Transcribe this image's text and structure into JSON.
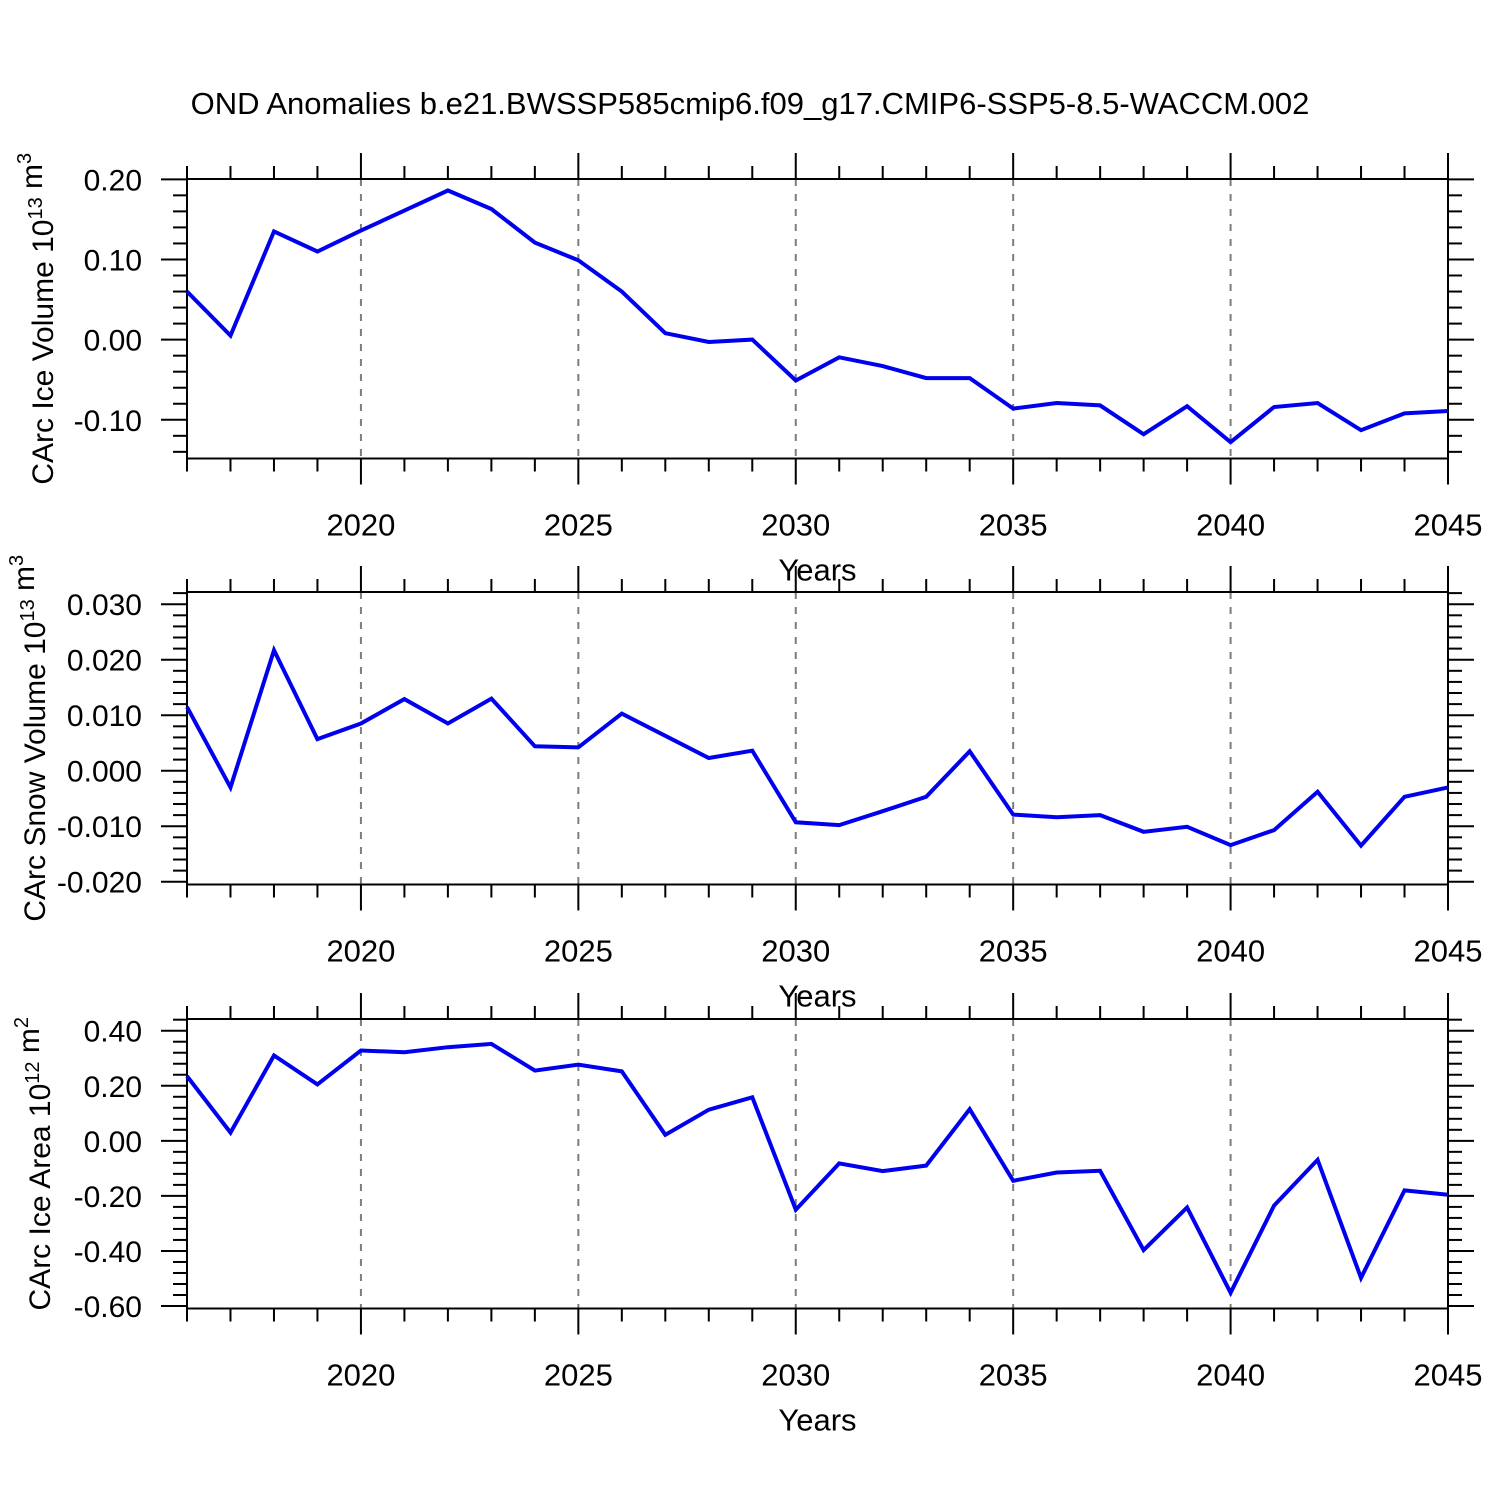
{
  "title": "OND Anomalies b.e21.BWSSP585cmip6.f09_g17.CMIP6-SSP5-8.5-WACCM.002",
  "colors": {
    "line": "#0000EE",
    "axis": "#000000",
    "grid": "#7D7D7D",
    "text": "#000000",
    "background": "#FFFFFF"
  },
  "x_axis": {
    "label": "Years",
    "years": [
      2016,
      2017,
      2018,
      2019,
      2020,
      2021,
      2022,
      2023,
      2024,
      2025,
      2026,
      2027,
      2028,
      2029,
      2030,
      2031,
      2032,
      2033,
      2034,
      2035,
      2036,
      2037,
      2038,
      2039,
      2040,
      2041,
      2042,
      2043,
      2044,
      2045
    ],
    "major_tick_years": [
      2020,
      2025,
      2030,
      2035,
      2040,
      2045
    ],
    "major_tick_labels": [
      "2020",
      "2025",
      "2030",
      "2035",
      "2040",
      "2045"
    ],
    "gridline_years": [
      2020,
      2025,
      2030,
      2035,
      2040
    ],
    "xlim": [
      2016,
      2045
    ]
  },
  "chart_data": [
    {
      "type": "line",
      "title": "",
      "ylabel": "CArc Ice Volume 10^13 m^3",
      "ylabel_parts": [
        {
          "text": "CArc Ice Volume 10",
          "sup": false
        },
        {
          "text": "13",
          "sup": true
        },
        {
          "text": " m",
          "sup": false
        },
        {
          "text": "3",
          "sup": true
        }
      ],
      "xlabel": "Years",
      "x": [
        2016,
        2017,
        2018,
        2019,
        2020,
        2021,
        2022,
        2023,
        2024,
        2025,
        2026,
        2027,
        2028,
        2029,
        2030,
        2031,
        2032,
        2033,
        2034,
        2035,
        2036,
        2037,
        2038,
        2039,
        2040,
        2041,
        2042,
        2043,
        2044,
        2045
      ],
      "series": [
        {
          "name": "CArc Ice Volume anomaly",
          "values": [
            0.06,
            0.005,
            0.135,
            0.11,
            0.136,
            0.161,
            0.186,
            0.163,
            0.121,
            0.099,
            0.06,
            0.008,
            -0.003,
            0.0,
            -0.051,
            -0.022,
            -0.033,
            -0.048,
            -0.048,
            -0.086,
            -0.079,
            -0.082,
            -0.118,
            -0.083,
            -0.128,
            -0.084,
            -0.079,
            -0.113,
            -0.092,
            -0.089
          ]
        }
      ],
      "ylim": [
        -0.1483,
        0.2004
      ],
      "ytick_values": [
        0.2,
        0.1,
        0.0,
        -0.1
      ],
      "ytick_labels": [
        "0.20",
        "0.10",
        "0.00",
        "-0.10"
      ],
      "minor_step": 0.02,
      "grid": "vertical-dashed",
      "legend": "none"
    },
    {
      "type": "line",
      "title": "",
      "ylabel": "CArc Snow Volume 10^13 m^3",
      "ylabel_parts": [
        {
          "text": "CArc Snow Volume 10",
          "sup": false
        },
        {
          "text": "13",
          "sup": true
        },
        {
          "text": " m",
          "sup": false
        },
        {
          "text": "3",
          "sup": true
        }
      ],
      "xlabel": "Years",
      "x": [
        2016,
        2017,
        2018,
        2019,
        2020,
        2021,
        2022,
        2023,
        2024,
        2025,
        2026,
        2027,
        2028,
        2029,
        2030,
        2031,
        2032,
        2033,
        2034,
        2035,
        2036,
        2037,
        2038,
        2039,
        2040,
        2041,
        2042,
        2043,
        2044,
        2045
      ],
      "series": [
        {
          "name": "CArc Snow Volume anomaly",
          "values": [
            0.0115,
            -0.003,
            0.0217,
            0.0057,
            0.0085,
            0.0129,
            0.0085,
            0.013,
            0.0044,
            0.0042,
            0.0103,
            0.0063,
            0.0023,
            0.0036,
            -0.0093,
            -0.0098,
            -0.0073,
            -0.0047,
            0.0035,
            -0.0079,
            -0.0084,
            -0.008,
            -0.011,
            -0.0101,
            -0.0134,
            -0.0107,
            -0.0038,
            -0.0135,
            -0.0047,
            -0.003
          ]
        }
      ],
      "ylim": [
        -0.0205,
        0.0322
      ],
      "ytick_values": [
        0.03,
        0.02,
        0.01,
        0.0,
        -0.01,
        -0.02
      ],
      "ytick_labels": [
        "0.030",
        "0.020",
        "0.010",
        "0.000",
        "-0.010",
        "-0.020"
      ],
      "minor_step": 0.002,
      "grid": "vertical-dashed",
      "legend": "none"
    },
    {
      "type": "line",
      "title": "",
      "ylabel": "CArc Ice Area 10^12 m^2",
      "ylabel_parts": [
        {
          "text": "CArc Ice Area 10",
          "sup": false
        },
        {
          "text": "12",
          "sup": true
        },
        {
          "text": " m",
          "sup": false
        },
        {
          "text": "2",
          "sup": true
        }
      ],
      "xlabel": "Years",
      "x": [
        2016,
        2017,
        2018,
        2019,
        2020,
        2021,
        2022,
        2023,
        2024,
        2025,
        2026,
        2027,
        2028,
        2029,
        2030,
        2031,
        2032,
        2033,
        2034,
        2035,
        2036,
        2037,
        2038,
        2039,
        2040,
        2041,
        2042,
        2043,
        2044,
        2045
      ],
      "series": [
        {
          "name": "CArc Ice Area anomaly",
          "values": [
            0.235,
            0.03,
            0.31,
            0.205,
            0.328,
            0.322,
            0.34,
            0.352,
            0.255,
            0.277,
            0.252,
            0.022,
            0.113,
            0.158,
            -0.25,
            -0.082,
            -0.11,
            -0.09,
            0.115,
            -0.145,
            -0.115,
            -0.109,
            -0.397,
            -0.242,
            -0.552,
            -0.235,
            -0.069,
            -0.498,
            -0.18,
            -0.196
          ]
        }
      ],
      "ylim": [
        -0.609,
        0.4425
      ],
      "ytick_values": [
        0.4,
        0.2,
        0.0,
        -0.2,
        -0.4,
        -0.6
      ],
      "ytick_labels": [
        "0.40",
        "0.20",
        "0.00",
        "-0.20",
        "-0.40",
        "-0.60"
      ],
      "minor_step": 0.04,
      "grid": "vertical-dashed",
      "legend": "none"
    }
  ]
}
